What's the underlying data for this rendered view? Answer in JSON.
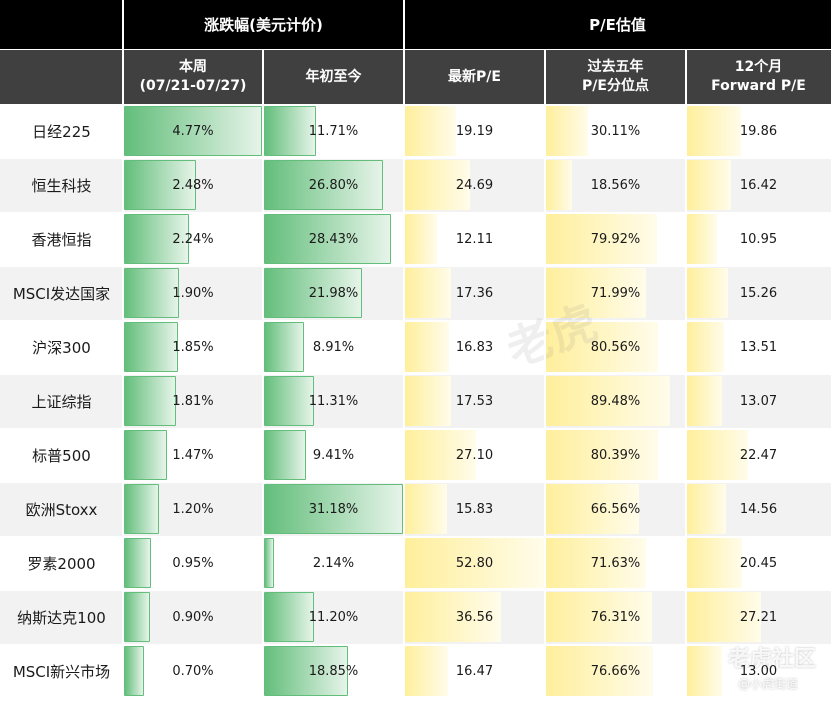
{
  "header": {
    "group_change": "涨跌幅(美元计价)",
    "group_pe": "P/E估值",
    "col_week_line1": "本周",
    "col_week_line2": "(07/21-07/27)",
    "col_ytd": "年初至今",
    "col_pe_latest": "最新P/E",
    "col_pe_pct_line1": "过去五年",
    "col_pe_pct_line2": "P/E分位点",
    "col_fwd_line1": "12个月",
    "col_fwd_line2": "Forward P/E"
  },
  "chart_data": {
    "type": "table",
    "columns": [
      "本周(07/21-07/27)",
      "年初至今",
      "最新P/E",
      "过去五年P/E分位点",
      "12个月Forward P/E"
    ],
    "rows": [
      {
        "name": "日经225",
        "week": "4.77%",
        "ytd": "11.71%",
        "pe": "19.19",
        "pe_pct": "30.11%",
        "fwd": "19.86"
      },
      {
        "name": "恒生科技",
        "week": "2.48%",
        "ytd": "26.80%",
        "pe": "24.69",
        "pe_pct": "18.56%",
        "fwd": "16.42"
      },
      {
        "name": "香港恒指",
        "week": "2.24%",
        "ytd": "28.43%",
        "pe": "12.11",
        "pe_pct": "79.92%",
        "fwd": "10.95"
      },
      {
        "name": "MSCI发达国家",
        "week": "1.90%",
        "ytd": "21.98%",
        "pe": "17.36",
        "pe_pct": "71.99%",
        "fwd": "15.26"
      },
      {
        "name": "沪深300",
        "week": "1.85%",
        "ytd": "8.91%",
        "pe": "16.83",
        "pe_pct": "80.56%",
        "fwd": "13.51"
      },
      {
        "name": "上证综指",
        "week": "1.81%",
        "ytd": "11.31%",
        "pe": "17.53",
        "pe_pct": "89.48%",
        "fwd": "13.07"
      },
      {
        "name": "标普500",
        "week": "1.47%",
        "ytd": "9.41%",
        "pe": "27.10",
        "pe_pct": "80.39%",
        "fwd": "22.47"
      },
      {
        "name": "欧洲Stoxx",
        "week": "1.20%",
        "ytd": "31.18%",
        "pe": "15.83",
        "pe_pct": "66.56%",
        "fwd": "14.56"
      },
      {
        "name": "罗素2000",
        "week": "0.95%",
        "ytd": "2.14%",
        "pe": "52.80",
        "pe_pct": "71.63%",
        "fwd": "20.45"
      },
      {
        "name": "纳斯达克100",
        "week": "0.90%",
        "ytd": "11.20%",
        "pe": "36.56",
        "pe_pct": "76.31%",
        "fwd": "27.21"
      },
      {
        "name": "MSCI新兴市场",
        "week": "0.70%",
        "ytd": "18.85%",
        "pe": "16.47",
        "pe_pct": "76.66%",
        "fwd": "13.00"
      }
    ]
  },
  "colors": {
    "header_top": "#000000",
    "header_sub": "#404040",
    "row_alt": "#f2f2f2",
    "bar_green": "#63be7b",
    "bar_yellow": "#ffef9c"
  },
  "watermark": {
    "center": "老虎",
    "brand": "老虎社区",
    "handle": "@小虎街道"
  }
}
